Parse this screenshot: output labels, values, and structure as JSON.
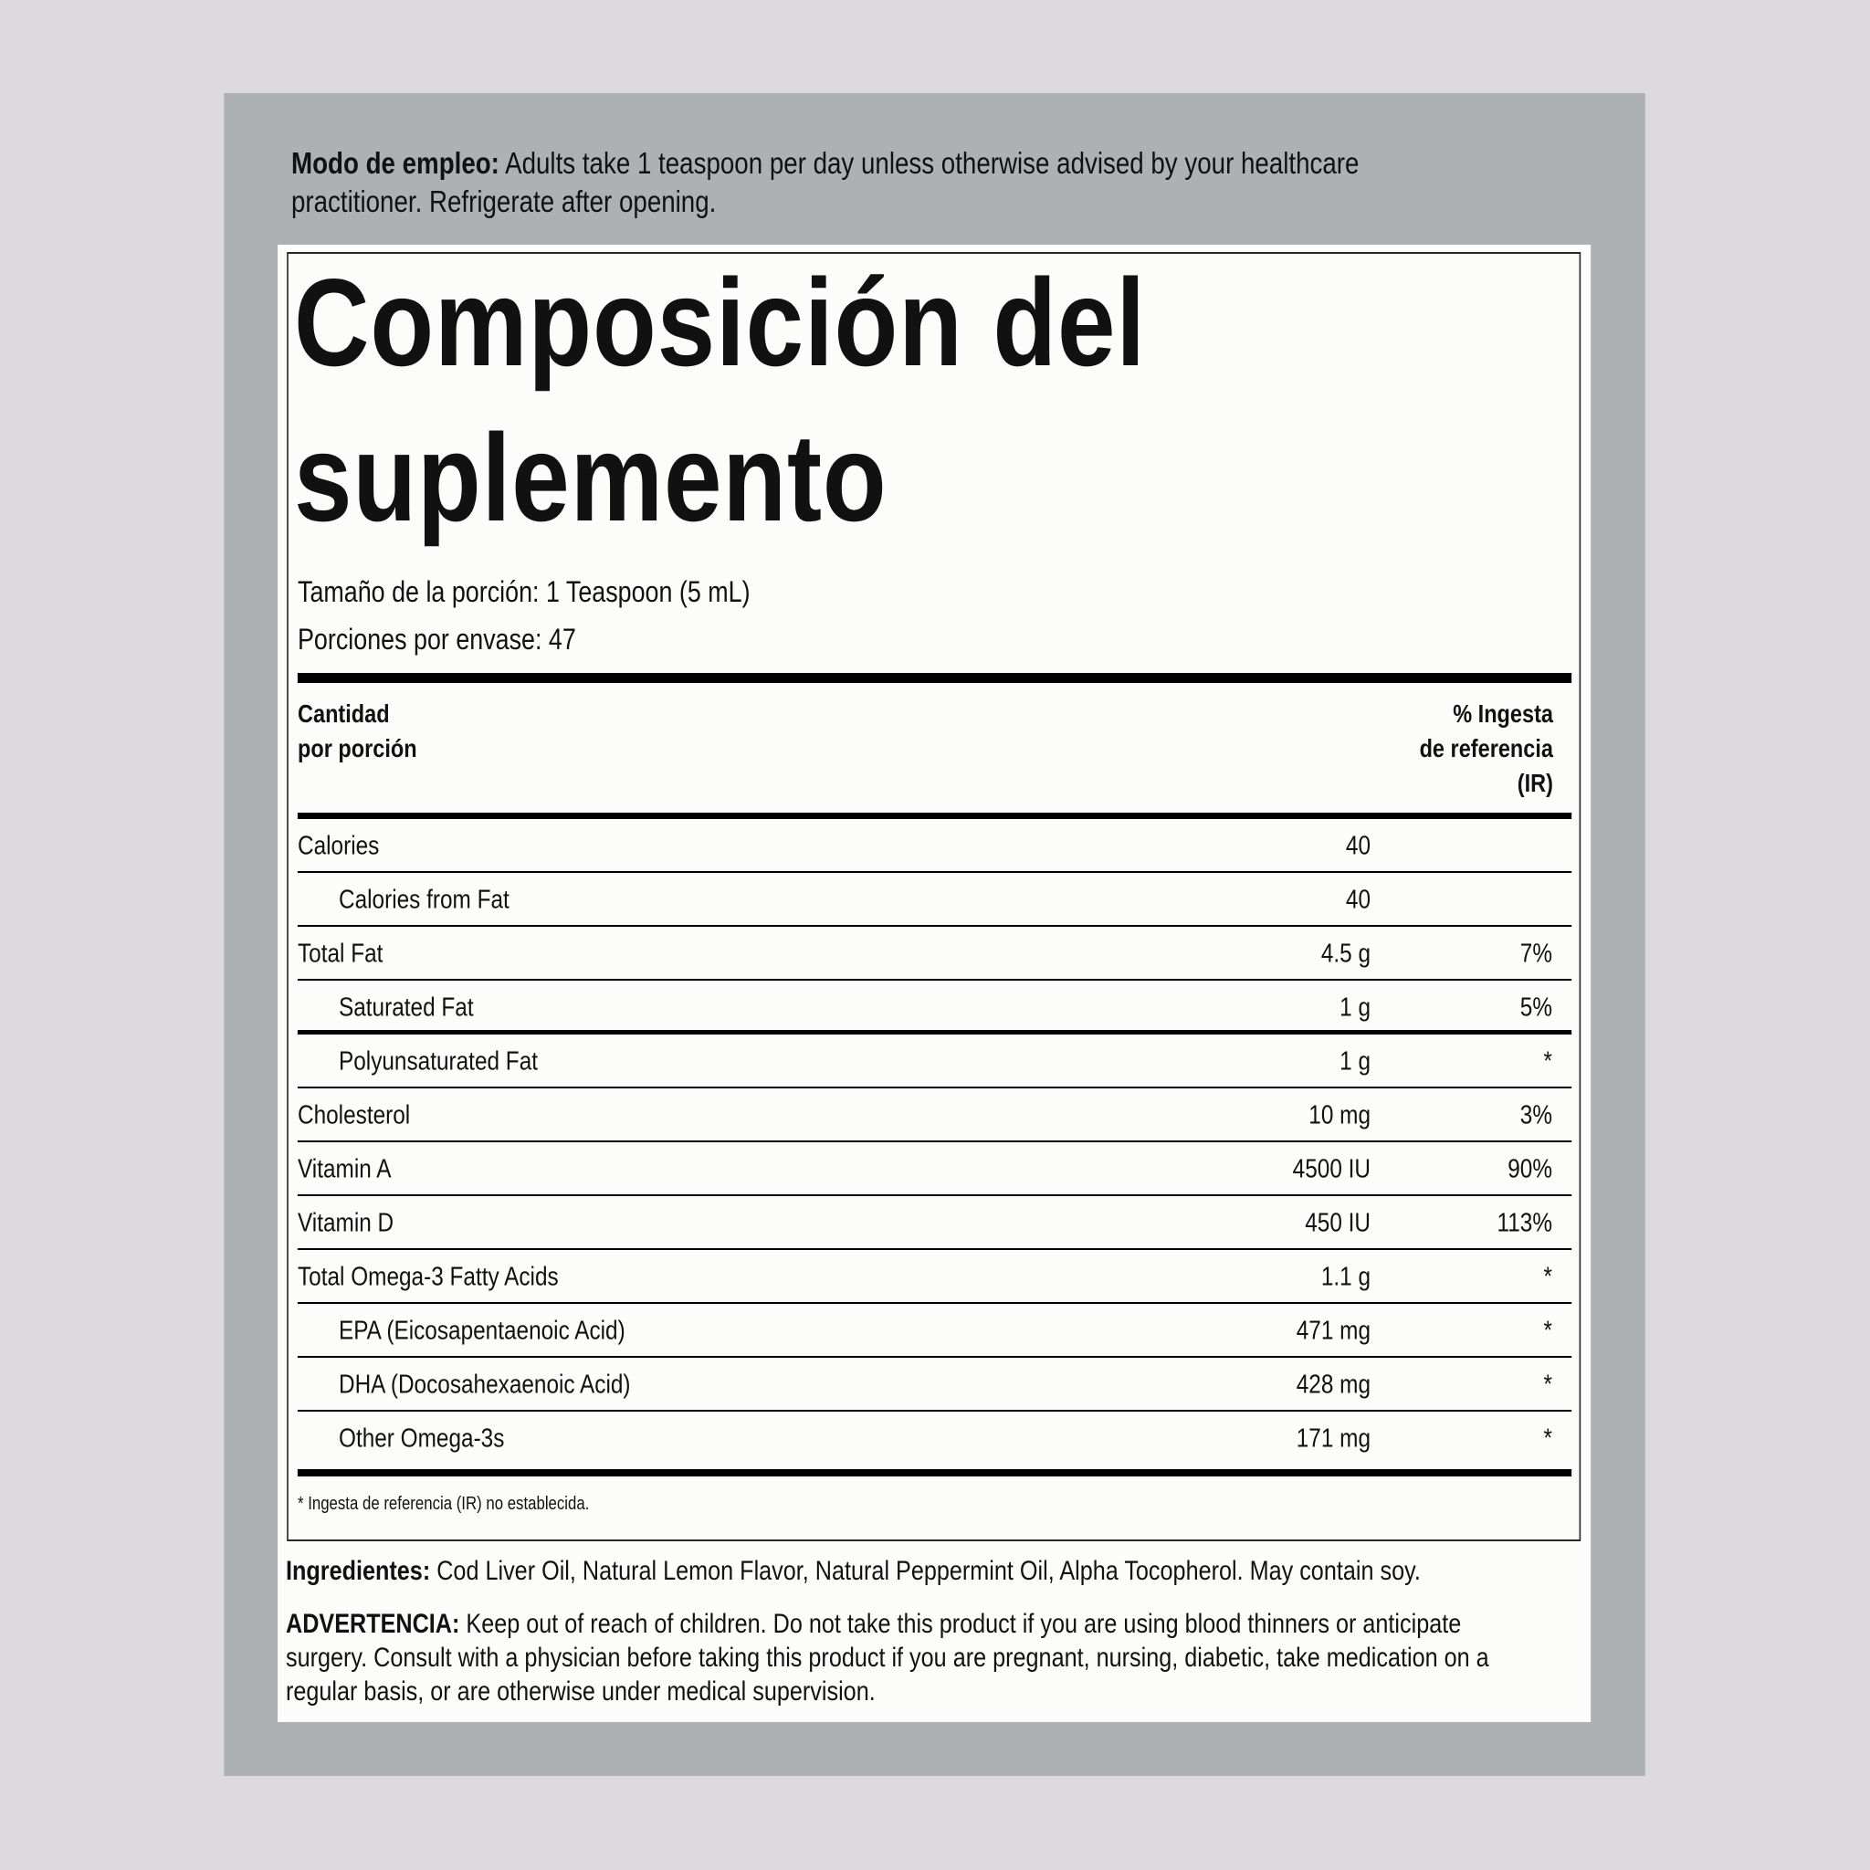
{
  "directions": {
    "label": "Modo de empleo:",
    "lines": [
      "Adults take 1 teaspoon per day unless otherwise advised by your healthcare",
      "practitioner. Refrigerate after opening."
    ]
  },
  "title": {
    "line1": "Composición del",
    "line2": "suplemento"
  },
  "serving_size": "Tamaño de la porción: 1 Teaspoon (5 mL)",
  "servings_per_container": "Porciones por envase: 47",
  "header": {
    "amount_line1": "Cantidad",
    "amount_line2": "por porción",
    "ir_line1": "% Ingesta",
    "ir_line2": "de referencia",
    "ir_line3": "(IR)"
  },
  "rows": [
    {
      "name": "Calories",
      "amount": "40",
      "pct": "",
      "indent": false
    },
    {
      "name": "Calories from Fat",
      "amount": "40",
      "pct": "",
      "indent": true
    },
    {
      "name": "Total Fat",
      "amount": "4.5 g",
      "pct": "7%",
      "indent": false
    },
    {
      "name": "Saturated Fat",
      "amount": "1 g",
      "pct": "5%",
      "indent": true
    },
    {
      "name": "Polyunsaturated Fat",
      "amount": "1 g",
      "pct": "*",
      "indent": true
    },
    {
      "name": "Cholesterol",
      "amount": "10 mg",
      "pct": "3%",
      "indent": false
    },
    {
      "name": "Vitamin A",
      "amount": "4500 IU",
      "pct": "90%",
      "indent": false
    },
    {
      "name": "Vitamin D",
      "amount": "450 IU",
      "pct": "113%",
      "indent": false
    },
    {
      "name": "Total Omega-3 Fatty Acids",
      "amount": "1.1 g",
      "pct": "*",
      "indent": false
    },
    {
      "name": "EPA (Eicosapentaenoic Acid)",
      "amount": "471 mg",
      "pct": "*",
      "indent": true
    },
    {
      "name": "DHA (Docosahexaenoic Acid)",
      "amount": "428 mg",
      "pct": "*",
      "indent": true
    },
    {
      "name": "Other Omega-3s",
      "amount": "171 mg",
      "pct": "*",
      "indent": true
    }
  ],
  "footnote": "* Ingesta de referencia (IR) no establecida.",
  "ingredients": {
    "label": "Ingredientes:",
    "text": "Cod Liver Oil, Natural Lemon Flavor, Natural Peppermint Oil, Alpha Tocopherol. May contain soy."
  },
  "warning": {
    "label": "ADVERTENCIA:",
    "lines": [
      "Keep out of reach of children. Do not take this product if you are using blood thinners or anticipate",
      "surgery. Consult with a physician before taking this product if you are pregnant, nursing, diabetic, take medication on a",
      "regular basis, or are otherwise under medical supervision."
    ]
  },
  "colors": {
    "page_bg": "#dcdadd",
    "panel_bg": "#adb1b4",
    "label_bg": "#fcfdfb",
    "ink": "#000000"
  }
}
